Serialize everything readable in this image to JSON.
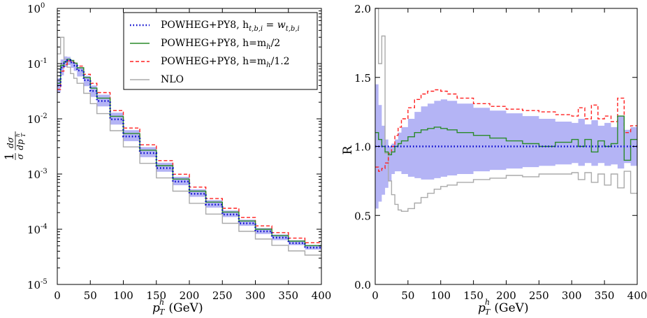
{
  "chart_data": [
    {
      "type": "line",
      "scale_y": "log",
      "xlim": [
        0,
        400
      ],
      "ylim": [
        1e-05,
        1
      ],
      "xticks": [
        "0",
        "50",
        "100",
        "150",
        "200",
        "250",
        "300",
        "350",
        "400"
      ],
      "yticks": [
        "10",
        "10",
        "10",
        "10",
        "10",
        "10"
      ],
      "yticks_exp": [
        "-5",
        "-4",
        "-3",
        "-2",
        "-1",
        "0"
      ],
      "xlabel": "p_T^h (GeV)",
      "xlabel_main": "p",
      "xlabel_sup": "h",
      "xlabel_sub": "T",
      "xlabel_unit": " (GeV)",
      "ylabel": "(1/σ) dσ/dp_T^h",
      "ylabel_frac1_num": "1",
      "ylabel_frac1_den": "σ",
      "ylabel_frac2_num": "dσ",
      "ylabel_frac2_den": "dp",
      "legend": {
        "position": "top-right",
        "entries": [
          {
            "label": "POWHEG+PY8, h",
            "label_sub": "t,b,i",
            "label_mid": " = w",
            "label_sub2": "t,b,i"
          },
          {
            "label": "POWHEG+PY8, h=m",
            "label_sub": "h",
            "label_tail": "/2"
          },
          {
            "label": "POWHEG+PY8, h=m",
            "label_sub": "h",
            "label_tail": "/1.2"
          },
          {
            "label": "NLO"
          }
        ]
      },
      "x": [
        0,
        5,
        10,
        15,
        20,
        25,
        30,
        40,
        50,
        60,
        80,
        100,
        125,
        150,
        175,
        200,
        225,
        250,
        275,
        300,
        325,
        350,
        375,
        400
      ],
      "series": [
        {
          "name": "POWHEG+PY8, h_t,b,i = w_t,b,i",
          "color": "#0000cc",
          "style": "dotted",
          "values": [
            0.04,
            0.085,
            0.108,
            0.115,
            0.105,
            0.092,
            0.075,
            0.05,
            0.032,
            0.021,
            0.0098,
            0.0048,
            0.0024,
            0.00128,
            0.00073,
            0.00044,
            0.00028,
            0.000185,
            0.000128,
            9.15e-05,
            7.05e-05,
            5.6e-05,
            4.65e-05,
            3.9e-05
          ]
        },
        {
          "name": "POWHEG+PY8, h=m_h/2",
          "color": "#2a8a2a",
          "style": "solid",
          "values": [
            0.044,
            0.093,
            0.108,
            0.12,
            0.114,
            0.102,
            0.084,
            0.056,
            0.036,
            0.0237,
            0.0111,
            0.0054,
            0.0027,
            0.00142,
            0.00081,
            0.00049,
            0.00031,
            0.000205,
            0.000141,
            0.0001,
            7.65e-05,
            6.1e-05,
            5.05e-05,
            4.25e-05
          ]
        },
        {
          "name": "POWHEG+PY8, h=m_h/1.2",
          "color": "#ff2020",
          "style": "dashed",
          "values": [
            0.034,
            0.073,
            0.096,
            0.112,
            0.108,
            0.104,
            0.09,
            0.064,
            0.044,
            0.0298,
            0.0141,
            0.0068,
            0.00338,
            0.00175,
            0.00099,
            0.00058,
            0.00036,
            0.00024,
            0.000163,
            0.000115,
            8.7e-05,
            6.9e-05,
            5.7e-05,
            4.8e-05
          ]
        },
        {
          "name": "NLO",
          "color": "#aaaaaa",
          "style": "solid",
          "values": [
            0.15,
            0.3,
            0.12,
            0.086,
            0.066,
            0.054,
            0.044,
            0.029,
            0.0188,
            0.0124,
            0.0061,
            0.0031,
            0.00156,
            0.00085,
            0.00049,
            0.000295,
            0.000188,
            0.000128,
            9.15e-05,
            6.65e-05,
            5.1e-05,
            4.05e-05,
            3.4e-05,
            2.8e-05
          ]
        }
      ],
      "band": {
        "color": "#b4b4f5",
        "lower_ratio": [
          0.75,
          0.72,
          0.8,
          0.82,
          0.8,
          0.8,
          0.78,
          0.78,
          0.78,
          0.8,
          0.8,
          0.82,
          0.84,
          0.86,
          0.86,
          0.88,
          0.88,
          0.9,
          0.9,
          0.9,
          0.9,
          0.92,
          0.92,
          0.93
        ],
        "upper_ratio": [
          1.35,
          1.4,
          1.25,
          1.15,
          1.1,
          1.12,
          1.15,
          1.2,
          1.25,
          1.3,
          1.32,
          1.3,
          1.28,
          1.25,
          1.22,
          1.2,
          1.2,
          1.18,
          1.16,
          1.15,
          1.14,
          1.13,
          1.12,
          1.1
        ]
      }
    },
    {
      "type": "line",
      "xlim": [
        0,
        400
      ],
      "ylim": [
        0,
        2.0
      ],
      "xticks": [
        "0",
        "50",
        "100",
        "150",
        "200",
        "250",
        "300",
        "350",
        "400"
      ],
      "yticks": [
        "0.0",
        "0.5",
        "1.0",
        "1.5",
        "2.0"
      ],
      "yticks_values": [
        0,
        0.5,
        1.0,
        1.5,
        2.0
      ],
      "xlabel": "p_T^h (GeV)",
      "xlabel_main": "p",
      "xlabel_sup": "h",
      "xlabel_sub": "T",
      "xlabel_unit": " (GeV)",
      "ylabel": "R",
      "x": [
        0,
        5,
        10,
        15,
        20,
        25,
        30,
        35,
        40,
        50,
        60,
        70,
        80,
        90,
        100,
        110,
        125,
        150,
        175,
        200,
        225,
        250,
        275,
        300,
        310,
        320,
        330,
        340,
        350,
        360,
        370,
        380,
        390,
        400
      ],
      "series": [
        {
          "name": "POWHEG+PY8, h_t,b,i = w_t,b,i",
          "color": "#0000cc",
          "style": "dotted",
          "values": [
            1.0,
            1.0,
            1.0,
            1.0,
            1.0,
            1.0,
            1.0,
            1.0,
            1.0,
            1.0,
            1.0,
            1.0,
            1.0,
            1.0,
            1.0,
            1.0,
            1.0,
            1.0,
            1.0,
            1.0,
            1.0,
            1.0,
            1.0,
            1.0,
            1.0,
            1.0,
            1.0,
            1.0,
            1.0,
            1.0,
            1.0,
            1.0,
            1.0,
            1.0
          ]
        },
        {
          "name": "POWHEG+PY8, h=m_h/2",
          "color": "#2a8a2a",
          "style": "solid",
          "values": [
            1.1,
            1.05,
            1.0,
            0.96,
            0.94,
            0.96,
            1.0,
            1.02,
            1.04,
            1.07,
            1.1,
            1.12,
            1.13,
            1.14,
            1.13,
            1.12,
            1.1,
            1.08,
            1.06,
            1.04,
            1.02,
            1.0,
            1.03,
            1.05,
            1.0,
            1.05,
            0.96,
            1.04,
            1.0,
            1.02,
            1.22,
            0.9,
            1.05,
            0.88
          ]
        },
        {
          "name": "POWHEG+PY8, h=m_h/1.2",
          "color": "#ff2020",
          "style": "dashed",
          "values": [
            0.85,
            0.82,
            0.84,
            0.88,
            0.95,
            1.0,
            1.08,
            1.14,
            1.2,
            1.28,
            1.34,
            1.38,
            1.4,
            1.41,
            1.4,
            1.38,
            1.35,
            1.31,
            1.29,
            1.27,
            1.26,
            1.25,
            1.23,
            1.22,
            1.28,
            1.2,
            1.3,
            1.2,
            1.22,
            1.18,
            1.35,
            1.1,
            1.15,
            1.12
          ]
        },
        {
          "name": "NLO",
          "color": "#aaaaaa",
          "style": "solid",
          "values": [
            2.0,
            1.6,
            1.8,
            0.95,
            0.75,
            0.65,
            0.58,
            0.54,
            0.53,
            0.55,
            0.59,
            0.63,
            0.66,
            0.69,
            0.71,
            0.72,
            0.74,
            0.76,
            0.77,
            0.79,
            0.78,
            0.8,
            0.8,
            0.81,
            0.76,
            0.81,
            0.74,
            0.8,
            0.72,
            0.8,
            0.7,
            0.82,
            0.66,
            0.64
          ]
        }
      ],
      "band": {
        "color": "#b4b4f5",
        "lower": [
          0.55,
          0.6,
          0.65,
          0.7,
          0.75,
          0.8,
          0.82,
          0.82,
          0.8,
          0.78,
          0.77,
          0.76,
          0.76,
          0.77,
          0.78,
          0.79,
          0.8,
          0.82,
          0.83,
          0.84,
          0.85,
          0.86,
          0.87,
          0.88,
          0.86,
          0.88,
          0.86,
          0.88,
          0.86,
          0.87,
          0.84,
          0.88,
          0.86,
          0.88
        ],
        "upper": [
          1.45,
          1.3,
          1.15,
          1.05,
          1.0,
          1.02,
          1.05,
          1.1,
          1.14,
          1.2,
          1.25,
          1.29,
          1.31,
          1.33,
          1.34,
          1.33,
          1.31,
          1.28,
          1.26,
          1.24,
          1.22,
          1.2,
          1.18,
          1.17,
          1.2,
          1.16,
          1.19,
          1.15,
          1.17,
          1.14,
          1.22,
          1.12,
          1.14,
          1.12
        ]
      }
    }
  ]
}
